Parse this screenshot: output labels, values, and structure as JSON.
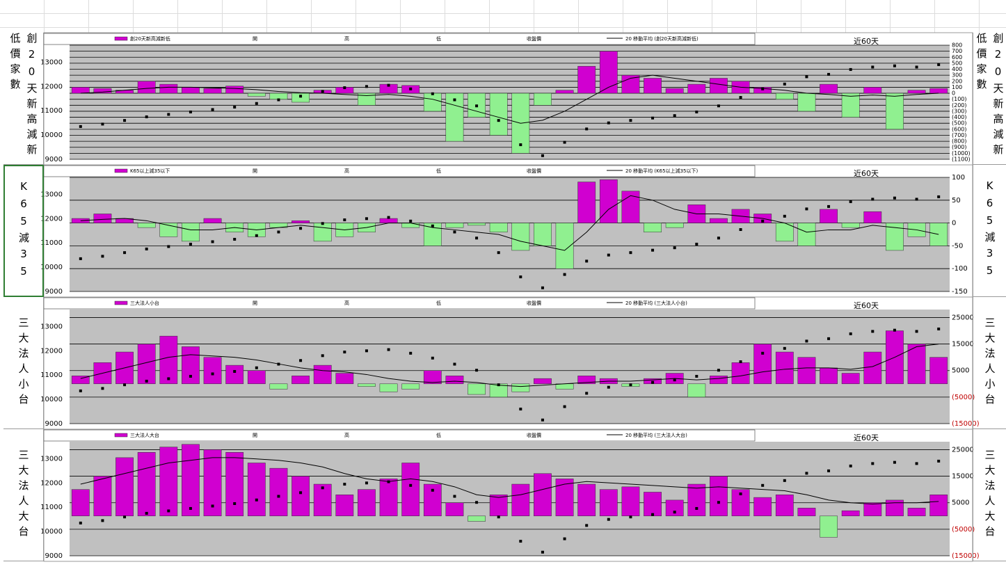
{
  "chart_data": [
    {
      "type": "bar",
      "side_label": "創20天新高減新低價家數",
      "annotation": "近60天",
      "ohlc_labels": [
        "開",
        "高",
        "低"
      ],
      "ylim": [
        9000,
        13700
      ],
      "yticks": [
        9000,
        10000,
        11000,
        12000,
        13000
      ],
      "y2lim": [
        -1100,
        800
      ],
      "y2ticks": [
        800,
        700,
        600,
        500,
        400,
        300,
        200,
        100,
        0,
        {
          "value": -100,
          "label": "(100)"
        },
        {
          "value": -200,
          "label": "(200)"
        },
        {
          "value": -300,
          "label": "(300)"
        },
        {
          "value": -400,
          "label": "(400)"
        },
        {
          "value": -500,
          "label": "(500)"
        },
        {
          "value": -600,
          "label": "(600)"
        },
        {
          "value": -700,
          "label": "(700)"
        },
        {
          "value": -800,
          "label": "(800)"
        },
        {
          "value": -900,
          "label": "(900)"
        },
        {
          "value": -1000,
          "label": "(1000)"
        },
        {
          "value": -1100,
          "label": "(1100)"
        }
      ],
      "grid": true,
      "positive_color": "#d000d0",
      "negative_color": "#90f090",
      "series": [
        {
          "name": "創20天新高減新低",
          "axis": "y2",
          "values": [
            100,
            80,
            50,
            200,
            150,
            100,
            80,
            120,
            -50,
            -100,
            -150,
            50,
            100,
            -200,
            150,
            130,
            -300,
            -800,
            -400,
            -700,
            -1000,
            -200,
            50,
            450,
            700,
            300,
            250,
            80,
            150,
            250,
            200,
            100,
            -100,
            -300,
            150,
            -400,
            100,
            -600,
            50,
            80
          ]
        },
        {
          "name": "收盤價",
          "color": "#000000",
          "values": [
            10350,
            10450,
            10600,
            10750,
            10850,
            10950,
            11050,
            11150,
            11300,
            11450,
            11600,
            11800,
            11950,
            12000,
            12050,
            11900,
            11700,
            11450,
            11200,
            10600,
            9600,
            9150,
            9700,
            10250,
            10500,
            10600,
            10700,
            10800,
            10950,
            11200,
            11550,
            11900,
            12100,
            12400,
            12500,
            12700,
            12800,
            12850,
            12800,
            12900
          ]
        },
        {
          "name": "20 移動平均 (創20天新高減新低)",
          "axis": "y2",
          "color": "#000000",
          "values": [
            0,
            20,
            50,
            80,
            100,
            100,
            90,
            80,
            60,
            30,
            10,
            0,
            -20,
            -40,
            -20,
            -50,
            -100,
            -200,
            -300,
            -400,
            -500,
            -450,
            -300,
            -100,
            100,
            250,
            300,
            250,
            200,
            150,
            100,
            80,
            50,
            0,
            -20,
            -50,
            -30,
            -50,
            -20,
            0
          ]
        }
      ]
    },
    {
      "type": "bar",
      "side_label": "K65減35",
      "annotation": "近60天",
      "ohlc_labels": [
        "開",
        "高",
        "低"
      ],
      "ylim": [
        9000,
        13700
      ],
      "yticks": [
        9000,
        10000,
        11000,
        12000,
        13000
      ],
      "y2lim": [
        -150,
        100
      ],
      "y2ticks": [
        100,
        50,
        0,
        -50,
        -100,
        -150
      ],
      "grid": true,
      "positive_color": "#d000d0",
      "negative_color": "#90f090",
      "series": [
        {
          "name": "K65以上減35以下",
          "axis": "y2",
          "values": [
            10,
            20,
            10,
            -10,
            -30,
            -40,
            10,
            -20,
            -30,
            -10,
            5,
            -40,
            -30,
            -20,
            10,
            -10,
            -50,
            -10,
            -5,
            -20,
            -60,
            -50,
            -100,
            90,
            95,
            70,
            -20,
            -10,
            40,
            10,
            30,
            20,
            -40,
            -50,
            30,
            -10,
            25,
            -60,
            -30,
            -50
          ]
        },
        {
          "name": "收盤價",
          "color": "#000000",
          "values": [
            10350,
            10450,
            10600,
            10750,
            10850,
            10950,
            11050,
            11150,
            11300,
            11450,
            11600,
            11800,
            11950,
            12000,
            12050,
            11900,
            11700,
            11450,
            11200,
            10600,
            9600,
            9150,
            9700,
            10250,
            10500,
            10600,
            10700,
            10800,
            10950,
            11200,
            11550,
            11900,
            12100,
            12400,
            12500,
            12700,
            12800,
            12850,
            12800,
            12900
          ]
        },
        {
          "name": "20 移動平均 (K65以上減35以下)",
          "axis": "y2",
          "color": "#000000",
          "values": [
            5,
            8,
            10,
            5,
            -5,
            -15,
            -15,
            -10,
            -15,
            -10,
            -5,
            -10,
            -15,
            -10,
            0,
            0,
            -10,
            -15,
            -20,
            -25,
            -40,
            -50,
            -60,
            -20,
            30,
            60,
            50,
            30,
            20,
            20,
            15,
            10,
            0,
            -20,
            -15,
            -15,
            -5,
            -10,
            -15,
            -25
          ]
        }
      ]
    },
    {
      "type": "bar",
      "side_label": "三大法人小台",
      "annotation": "近60天",
      "ohlc_labels": [
        "開",
        "高",
        "低"
      ],
      "ylim": [
        9000,
        13700
      ],
      "yticks": [
        9000,
        10000,
        11000,
        12000,
        13000
      ],
      "y2lim": [
        -15000,
        28000
      ],
      "y2ticks": [
        25000,
        15000,
        5000,
        {
          "value": -5000,
          "label": "(5000)"
        },
        {
          "value": -15000,
          "label": "(15000)"
        }
      ],
      "negative_tick_color": "#c00000",
      "grid": true,
      "positive_color": "#d000d0",
      "negative_color": "#90f090",
      "series": [
        {
          "name": "三大法人小台",
          "axis": "y2",
          "values": [
            3000,
            8000,
            12000,
            15000,
            18000,
            14000,
            10000,
            7000,
            5000,
            -2000,
            3000,
            7000,
            4000,
            -1000,
            -3000,
            -2000,
            5000,
            3000,
            -4000,
            -5000,
            -3000,
            2000,
            -2000,
            3000,
            2000,
            -1000,
            2000,
            4000,
            -5000,
            3000,
            8000,
            15000,
            12000,
            10000,
            6000,
            4000,
            12000,
            20000,
            15000,
            10000
          ]
        },
        {
          "name": "收盤價",
          "color": "#000000",
          "values": [
            10350,
            10450,
            10600,
            10750,
            10850,
            10950,
            11050,
            11150,
            11300,
            11450,
            11600,
            11800,
            11950,
            12000,
            12050,
            11900,
            11700,
            11450,
            11200,
            10600,
            9600,
            9150,
            9700,
            10250,
            10500,
            10600,
            10700,
            10800,
            10950,
            11200,
            11550,
            11900,
            12100,
            12400,
            12500,
            12700,
            12800,
            12850,
            12800,
            12900
          ]
        },
        {
          "name": "20 移動平均 (三大法人小台)",
          "axis": "y2",
          "color": "#000000",
          "values": [
            2000,
            4000,
            6000,
            8000,
            10000,
            11000,
            10500,
            10000,
            9000,
            7500,
            6000,
            5000,
            4500,
            3500,
            2000,
            1000,
            500,
            1000,
            500,
            -500,
            -1000,
            -500,
            0,
            500,
            1000,
            1000,
            1500,
            2000,
            1500,
            2000,
            3000,
            4500,
            5500,
            6000,
            6000,
            5500,
            6500,
            10000,
            14000,
            15000
          ]
        }
      ]
    },
    {
      "type": "bar",
      "side_label": "三大法人大台",
      "annotation": "近60天",
      "ohlc_labels": [
        "開",
        "高",
        "低"
      ],
      "ylim": [
        9000,
        13700
      ],
      "yticks": [
        9000,
        10000,
        11000,
        12000,
        13000
      ],
      "y2lim": [
        -15000,
        28000
      ],
      "y2ticks": [
        25000,
        15000,
        5000,
        {
          "value": -5000,
          "label": "(5000)"
        },
        {
          "value": -15000,
          "label": "(15000)"
        }
      ],
      "negative_tick_color": "#c00000",
      "grid": true,
      "positive_color": "#d000d0",
      "negative_color": "#90f090",
      "series": [
        {
          "name": "三大法人大台",
          "axis": "y2",
          "values": [
            10000,
            15000,
            22000,
            24000,
            26000,
            27000,
            25000,
            24000,
            20000,
            18000,
            15000,
            12000,
            8000,
            10000,
            14000,
            20000,
            12000,
            5000,
            -2000,
            8000,
            12000,
            16000,
            14000,
            12000,
            10000,
            11000,
            9000,
            6000,
            12000,
            15000,
            10000,
            7000,
            8000,
            3000,
            -8000,
            2000,
            5000,
            6000,
            3000,
            8000
          ]
        },
        {
          "name": "收盤價",
          "color": "#000000",
          "values": [
            10350,
            10450,
            10600,
            10750,
            10850,
            10950,
            11050,
            11150,
            11300,
            11450,
            11600,
            11800,
            11950,
            12000,
            12050,
            11900,
            11700,
            11450,
            11200,
            10600,
            9600,
            9150,
            9700,
            10250,
            10500,
            10600,
            10700,
            10800,
            10950,
            11200,
            11550,
            11900,
            12100,
            12400,
            12500,
            12700,
            12800,
            12850,
            12800,
            12900
          ]
        },
        {
          "name": "20 移動平均 (三大法人大台)",
          "axis": "y2",
          "color": "#000000",
          "values": [
            12000,
            14000,
            16000,
            18000,
            20000,
            21000,
            22000,
            22000,
            21500,
            21000,
            20000,
            18500,
            16000,
            14000,
            13000,
            14000,
            13000,
            11000,
            8000,
            7000,
            8000,
            10000,
            12000,
            13000,
            12500,
            12000,
            11500,
            11000,
            10500,
            11000,
            10500,
            10000,
            9500,
            8000,
            6000,
            5000,
            4500,
            5000,
            5000,
            5500
          ]
        }
      ]
    }
  ]
}
